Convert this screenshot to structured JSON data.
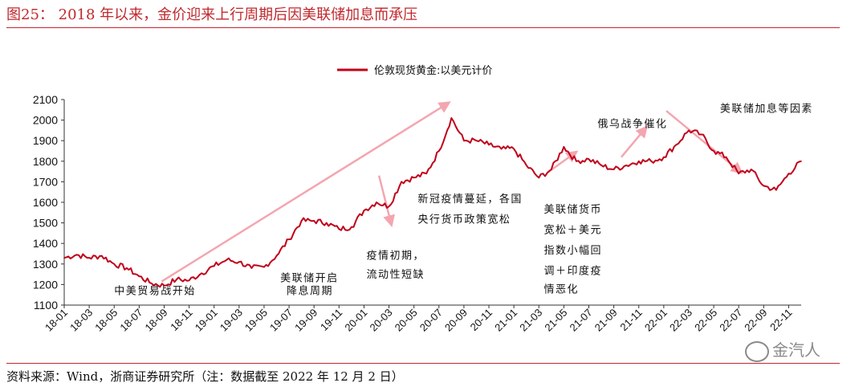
{
  "figure": {
    "title": "图25： 2018 年以来，金价迎来上行周期后因美联储加息而承压",
    "source": "资料来源：Wind，浙商证券研究所（注：数据截至 2022 年 12 月 2 日）",
    "watermark": "金汽人"
  },
  "colors": {
    "title": "#c0282d",
    "line": "#c0001a",
    "arrow": "#f3a6b0",
    "axis": "#333333",
    "text": "#111111"
  },
  "chart_data": {
    "type": "line",
    "title": "",
    "xlabel": "",
    "ylabel": "",
    "ylim": [
      1100,
      2100
    ],
    "yticks": [
      1100,
      1200,
      1300,
      1400,
      1500,
      1600,
      1700,
      1800,
      1900,
      2000,
      2100
    ],
    "xticks": [
      "18-01",
      "18-03",
      "18-05",
      "18-07",
      "18-09",
      "18-11",
      "19-01",
      "19-03",
      "19-05",
      "19-07",
      "19-09",
      "19-11",
      "20-01",
      "20-03",
      "20-05",
      "20-07",
      "20-09",
      "20-11",
      "21-01",
      "21-03",
      "21-05",
      "21-07",
      "21-09",
      "21-11",
      "22-01",
      "22-03",
      "22-05",
      "22-07",
      "22-09",
      "22-11"
    ],
    "grid": false,
    "legend_position": "top-center",
    "series": [
      {
        "name": "伦敦现货黄金:以美元计价",
        "x": [
          "2018-01",
          "2018-02",
          "2018-03",
          "2018-04",
          "2018-05",
          "2018-06",
          "2018-07",
          "2018-08",
          "2018-09",
          "2018-10",
          "2018-11",
          "2018-12",
          "2019-01",
          "2019-02",
          "2019-03",
          "2019-04",
          "2019-05",
          "2019-06",
          "2019-07",
          "2019-08",
          "2019-09",
          "2019-10",
          "2019-11",
          "2019-12",
          "2020-01",
          "2020-02",
          "2020-03",
          "2020-04",
          "2020-05",
          "2020-06",
          "2020-07",
          "2020-08",
          "2020-09",
          "2020-10",
          "2020-11",
          "2020-12",
          "2021-01",
          "2021-02",
          "2021-03",
          "2021-04",
          "2021-05",
          "2021-06",
          "2021-07",
          "2021-08",
          "2021-09",
          "2021-10",
          "2021-11",
          "2021-12",
          "2022-01",
          "2022-02",
          "2022-03",
          "2022-04",
          "2022-05",
          "2022-06",
          "2022-07",
          "2022-08",
          "2022-09",
          "2022-10",
          "2022-11",
          "2022-12"
        ],
        "values": [
          1330,
          1345,
          1330,
          1340,
          1300,
          1280,
          1240,
          1205,
          1195,
          1225,
          1220,
          1255,
          1290,
          1320,
          1310,
          1280,
          1285,
          1340,
          1420,
          1510,
          1510,
          1500,
          1470,
          1480,
          1560,
          1600,
          1580,
          1700,
          1720,
          1740,
          1850,
          2010,
          1900,
          1900,
          1880,
          1860,
          1860,
          1780,
          1720,
          1760,
          1870,
          1800,
          1810,
          1780,
          1760,
          1780,
          1800,
          1800,
          1820,
          1880,
          1950,
          1930,
          1850,
          1820,
          1740,
          1760,
          1680,
          1660,
          1740,
          1800
        ]
      }
    ],
    "annotations": [
      "中美贸易战开始",
      "美联储开启",
      "降息周期",
      "新冠疫情蔓延，各国",
      "央行货币政策宽松",
      "疫情初期，",
      "流动性短缺",
      "美联储货币",
      "宽松＋美元",
      "指数小幅回",
      "调＋印度疫",
      "情恶化",
      "俄乌战争催化",
      "美联储加息等因素"
    ]
  }
}
